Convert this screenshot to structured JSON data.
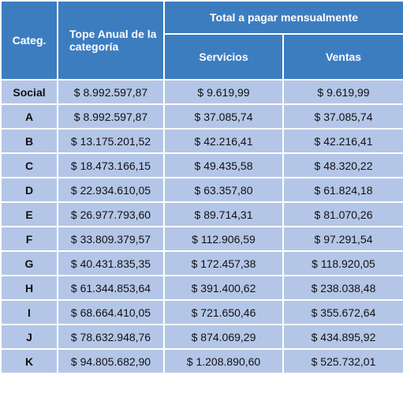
{
  "table": {
    "headers": {
      "category": "Categ.",
      "annual_cap": "Tope Anual de la categoría",
      "monthly_total": "Total a pagar mensualmente",
      "services": "Servicios",
      "sales": "Ventas"
    },
    "rows": [
      [
        "Social",
        "$ 8.992.597,87",
        "$ 9.619,99",
        "$ 9.619,99"
      ],
      [
        "A",
        "$ 8.992.597,87",
        "$ 37.085,74",
        "$ 37.085,74"
      ],
      [
        "B",
        "$ 13.175.201,52",
        "$ 42.216,41",
        "$ 42.216,41"
      ],
      [
        "C",
        "$ 18.473.166,15",
        "$ 49.435,58",
        "$ 48.320,22"
      ],
      [
        "D",
        "$ 22.934.610,05",
        "$ 63.357,80",
        "$ 61.824,18"
      ],
      [
        "E",
        "$ 26.977.793,60",
        "$ 89.714,31",
        "$ 81.070,26"
      ],
      [
        "F",
        "$ 33.809.379,57",
        "$ 112.906,59",
        "$ 97.291,54"
      ],
      [
        "G",
        "$ 40.431.835,35",
        "$ 172.457,38",
        "$ 118.920,05"
      ],
      [
        "H",
        "$ 61.344.853,64",
        "$ 391.400,62",
        "$ 238.038,48"
      ],
      [
        "I",
        "$ 68.664.410,05",
        "$ 721.650,46",
        "$ 355.672,64"
      ],
      [
        "J",
        "$ 78.632.948,76",
        "$ 874.069,29",
        "$ 434.895,92"
      ],
      [
        "K",
        "$ 94.805.682,90",
        "$ 1.208.890,60",
        "$ 525.732,01"
      ]
    ]
  }
}
